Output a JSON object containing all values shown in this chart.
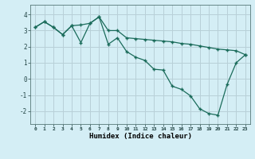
{
  "xlabel": "Humidex (Indice chaleur)",
  "bg_color": "#d4eef5",
  "grid_color": "#b8d0d8",
  "line_color": "#1a6b5a",
  "xlim": [
    -0.5,
    23.5
  ],
  "ylim": [
    -2.8,
    4.6
  ],
  "xticks": [
    0,
    1,
    2,
    3,
    4,
    5,
    6,
    7,
    8,
    9,
    10,
    11,
    12,
    13,
    14,
    15,
    16,
    17,
    18,
    19,
    20,
    21,
    22,
    23
  ],
  "yticks": [
    -2,
    -1,
    0,
    1,
    2,
    3,
    4
  ],
  "line1_x": [
    0,
    1,
    2,
    3,
    4,
    5,
    6,
    7,
    8,
    9,
    10,
    11,
    12,
    13,
    14,
    15,
    16,
    17,
    18,
    19,
    20,
    21,
    22,
    23
  ],
  "line1_y": [
    3.2,
    3.55,
    3.2,
    2.75,
    3.3,
    3.35,
    3.45,
    3.85,
    3.0,
    3.0,
    2.55,
    2.5,
    2.45,
    2.4,
    2.35,
    2.3,
    2.2,
    2.15,
    2.05,
    1.95,
    1.85,
    1.8,
    1.75,
    1.5
  ],
  "line2_x": [
    0,
    1,
    2,
    3,
    4,
    5,
    6,
    7,
    8,
    9,
    10,
    11,
    12,
    13,
    14,
    15,
    16,
    17,
    18,
    19,
    20,
    21,
    22,
    23
  ],
  "line2_y": [
    3.2,
    3.55,
    3.2,
    2.75,
    3.3,
    2.25,
    3.45,
    3.85,
    2.15,
    2.55,
    1.7,
    1.35,
    1.15,
    0.6,
    0.55,
    -0.45,
    -0.65,
    -1.05,
    -1.85,
    -2.15,
    -2.25,
    -0.35,
    1.0,
    1.5
  ]
}
